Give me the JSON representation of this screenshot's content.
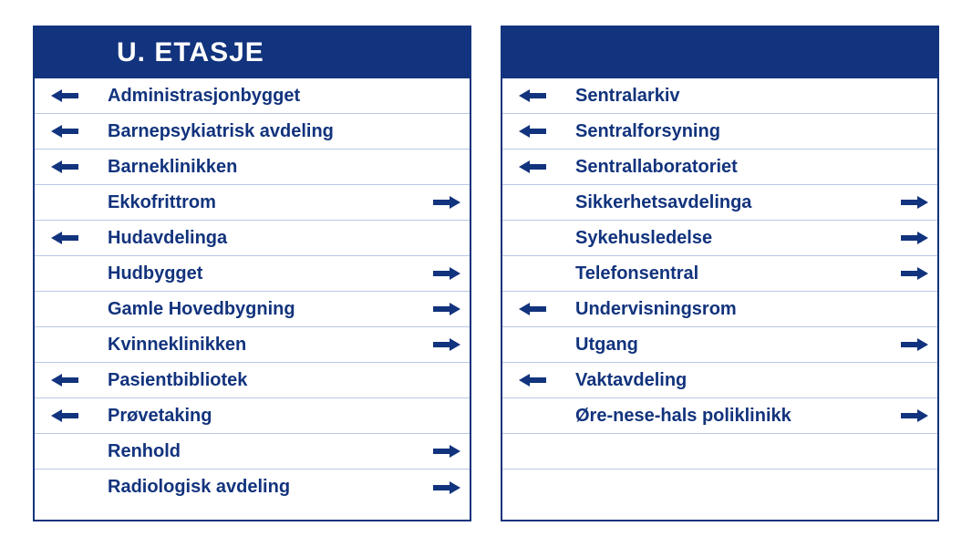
{
  "colors": {
    "brand": "#12337d",
    "rule": "#b9c8e6",
    "bg": "#ffffff"
  },
  "header": {
    "title": "U. ETASJE"
  },
  "panels": [
    {
      "showHeader": true,
      "rows": [
        {
          "label": "Administrasjonbygget",
          "dir": "left"
        },
        {
          "label": "Barnepsykiatrisk avdeling",
          "dir": "left"
        },
        {
          "label": "Barneklinikken",
          "dir": "left"
        },
        {
          "label": "Ekkofrittrom",
          "dir": "right"
        },
        {
          "label": "Hudavdelinga",
          "dir": "left"
        },
        {
          "label": "Hudbygget",
          "dir": "right"
        },
        {
          "label": "Gamle Hovedbygning",
          "dir": "right"
        },
        {
          "label": "Kvinneklinikken",
          "dir": "right"
        },
        {
          "label": "Pasientbibliotek",
          "dir": "left"
        },
        {
          "label": "Prøvetaking",
          "dir": "left"
        },
        {
          "label": "Renhold",
          "dir": "right"
        },
        {
          "label": "Radiologisk avdeling",
          "dir": "right"
        }
      ]
    },
    {
      "showHeader": false,
      "rows": [
        {
          "label": "Sentralarkiv",
          "dir": "left"
        },
        {
          "label": "Sentralforsyning",
          "dir": "left"
        },
        {
          "label": "Sentrallaboratoriet",
          "dir": "left"
        },
        {
          "label": "Sikkerhetsavdelinga",
          "dir": "right"
        },
        {
          "label": "Sykehusledelse",
          "dir": "right"
        },
        {
          "label": "Telefonsentral",
          "dir": "right"
        },
        {
          "label": "Undervisningsrom",
          "dir": "left"
        },
        {
          "label": "Utgang",
          "dir": "right"
        },
        {
          "label": "Vaktavdeling",
          "dir": "left"
        },
        {
          "label": "Øre-nese-hals poliklinikk",
          "dir": "right"
        },
        {
          "label": "",
          "dir": "none"
        },
        {
          "label": "",
          "dir": "none"
        }
      ]
    }
  ],
  "arrow": {
    "fill": "#12337d",
    "width": 30,
    "height": 14
  }
}
